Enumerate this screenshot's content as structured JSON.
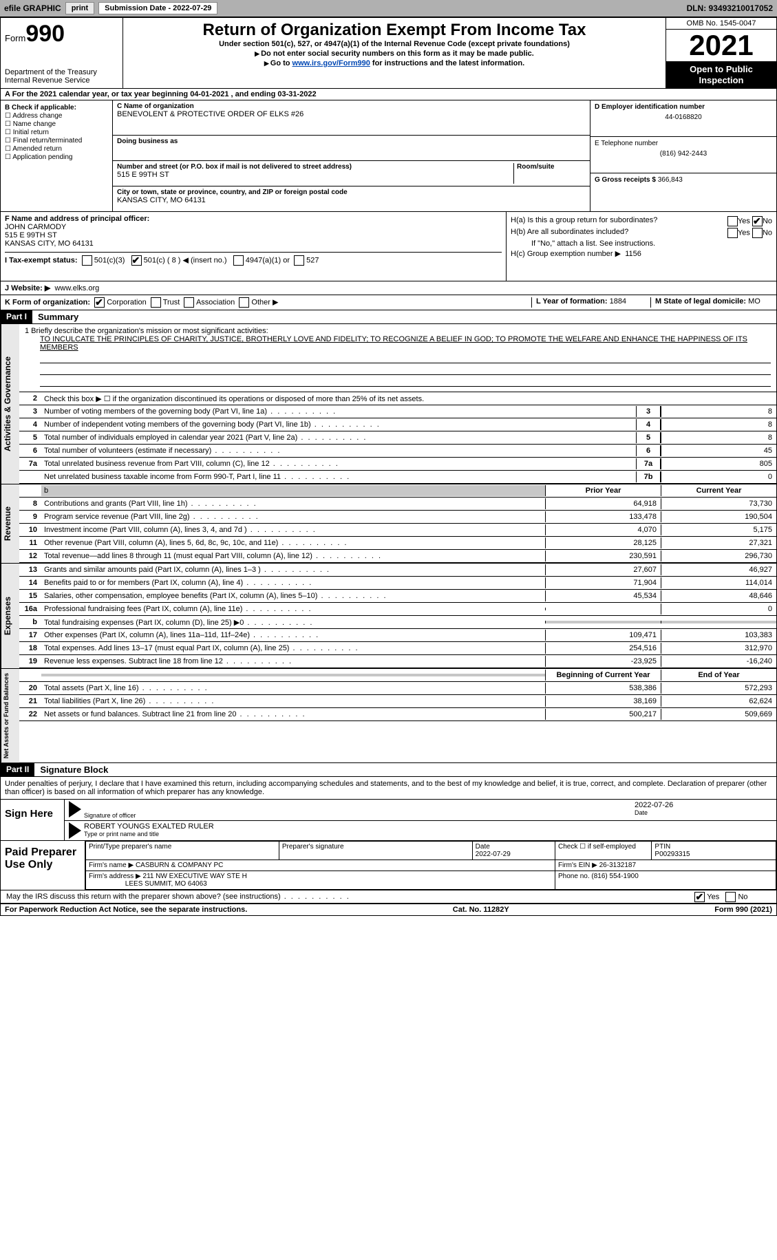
{
  "topbar": {
    "efile_label": "efile GRAPHIC",
    "print_btn": "print",
    "submission_label": "Submission Date - 2022-07-29",
    "dln_label": "DLN: 93493210017052"
  },
  "header": {
    "form_word": "Form",
    "form_num": "990",
    "dept": "Department of the Treasury",
    "irs": "Internal Revenue Service",
    "title": "Return of Organization Exempt From Income Tax",
    "sub1": "Under section 501(c), 527, or 4947(a)(1) of the Internal Revenue Code (except private foundations)",
    "sub2": "Do not enter social security numbers on this form as it may be made public.",
    "sub3_pre": "Go to ",
    "sub3_link": "www.irs.gov/Form990",
    "sub3_post": " for instructions and the latest information.",
    "omb": "OMB No. 1545-0047",
    "year": "2021",
    "inspect1": "Open to Public",
    "inspect2": "Inspection"
  },
  "row_a": "A For the 2021 calendar year, or tax year beginning 04-01-2021    , and ending 03-31-2022",
  "col_b": {
    "title": "B Check if applicable:",
    "items": [
      "Address change",
      "Name change",
      "Initial return",
      "Final return/terminated",
      "Amended return",
      "Application pending"
    ]
  },
  "col_c": {
    "name_label": "C Name of organization",
    "name_val": "BENEVOLENT & PROTECTIVE ORDER OF ELKS #26",
    "dba_label": "Doing business as",
    "street_label": "Number and street (or P.O. box if mail is not delivered to street address)",
    "room_label": "Room/suite",
    "street_val": "515 E 99TH ST",
    "city_label": "City or town, state or province, country, and ZIP or foreign postal code",
    "city_val": "KANSAS CITY, MO   64131"
  },
  "col_d": {
    "ein_label": "D Employer identification number",
    "ein_val": "44-0168820",
    "phone_label": "E Telephone number",
    "phone_val": "(816) 942-2443",
    "gross_label": "G Gross receipts $",
    "gross_val": "366,843"
  },
  "row_f": {
    "label": "F  Name and address of principal officer:",
    "name": "JOHN CARMODY",
    "street": "515 E 99TH ST",
    "city": "KANSAS CITY, MO   64131"
  },
  "row_h": {
    "ha": "H(a)  Is this a group return for subordinates?",
    "hb": "H(b)  Are all subordinates included?",
    "hb_note": "If \"No,\" attach a list. See instructions.",
    "hc": "H(c)  Group exemption number ▶",
    "hc_val": "1156",
    "yes": "Yes",
    "no": "No"
  },
  "row_i": {
    "label": "I    Tax-exempt status:",
    "opt1": "501(c)(3)",
    "opt2": "501(c) ( 8 ) ◀ (insert no.)",
    "opt3": "4947(a)(1) or",
    "opt4": "527"
  },
  "row_j": {
    "label": "J   Website: ▶",
    "val": "www.elks.org"
  },
  "row_k": {
    "label": "K Form of organization:",
    "opts": [
      "Corporation",
      "Trust",
      "Association",
      "Other ▶"
    ],
    "l_label": "L Year of formation:",
    "l_val": "1884",
    "m_label": "M State of legal domicile:",
    "m_val": "MO"
  },
  "part1": {
    "header": "Part I",
    "title": "Summary",
    "vert1": "Activities & Governance",
    "vert2": "Revenue",
    "vert3": "Expenses",
    "vert4": "Net Assets or Fund Balances",
    "line1_label": "1   Briefly describe the organization's mission or most significant activities:",
    "mission": "TO INCULCATE THE PRINCIPLES OF CHARITY, JUSTICE, BROTHERLY LOVE AND FIDELITY; TO RECOGNIZE A BELIEF IN GOD; TO PROMOTE THE WELFARE AND ENHANCE THE HAPPINESS OF ITS MEMBERS",
    "line2": "Check this box ▶ ☐  if the organization discontinued its operations or disposed of more than 25% of its net assets.",
    "rows_single": [
      {
        "n": "3",
        "desc": "Number of voting members of the governing body (Part VI, line 1a)",
        "ln": "3",
        "val": "8"
      },
      {
        "n": "4",
        "desc": "Number of independent voting members of the governing body (Part VI, line 1b)",
        "ln": "4",
        "val": "8"
      },
      {
        "n": "5",
        "desc": "Total number of individuals employed in calendar year 2021 (Part V, line 2a)",
        "ln": "5",
        "val": "8"
      },
      {
        "n": "6",
        "desc": "Total number of volunteers (estimate if necessary)",
        "ln": "6",
        "val": "45"
      },
      {
        "n": "7a",
        "desc": "Total unrelated business revenue from Part VIII, column (C), line 12",
        "ln": "7a",
        "val": "805"
      },
      {
        "n": "",
        "desc": "Net unrelated business taxable income from Form 990-T, Part I, line 11",
        "ln": "7b",
        "val": "0"
      }
    ],
    "prior_header": "Prior Year",
    "current_header": "Current Year",
    "rows_rev": [
      {
        "n": "8",
        "desc": "Contributions and grants (Part VIII, line 1h)",
        "p": "64,918",
        "c": "73,730"
      },
      {
        "n": "9",
        "desc": "Program service revenue (Part VIII, line 2g)",
        "p": "133,478",
        "c": "190,504"
      },
      {
        "n": "10",
        "desc": "Investment income (Part VIII, column (A), lines 3, 4, and 7d )",
        "p": "4,070",
        "c": "5,175"
      },
      {
        "n": "11",
        "desc": "Other revenue (Part VIII, column (A), lines 5, 6d, 8c, 9c, 10c, and 11e)",
        "p": "28,125",
        "c": "27,321"
      },
      {
        "n": "12",
        "desc": "Total revenue—add lines 8 through 11 (must equal Part VIII, column (A), line 12)",
        "p": "230,591",
        "c": "296,730"
      }
    ],
    "rows_exp": [
      {
        "n": "13",
        "desc": "Grants and similar amounts paid (Part IX, column (A), lines 1–3 )",
        "p": "27,607",
        "c": "46,927"
      },
      {
        "n": "14",
        "desc": "Benefits paid to or for members (Part IX, column (A), line 4)",
        "p": "71,904",
        "c": "114,014"
      },
      {
        "n": "15",
        "desc": "Salaries, other compensation, employee benefits (Part IX, column (A), lines 5–10)",
        "p": "45,534",
        "c": "48,646"
      },
      {
        "n": "16a",
        "desc": "Professional fundraising fees (Part IX, column (A), line 11e)",
        "p": "",
        "c": "0"
      },
      {
        "n": "b",
        "desc": "Total fundraising expenses (Part IX, column (D), line 25) ▶0",
        "p": "grey",
        "c": "grey"
      },
      {
        "n": "17",
        "desc": "Other expenses (Part IX, column (A), lines 11a–11d, 11f–24e)",
        "p": "109,471",
        "c": "103,383"
      },
      {
        "n": "18",
        "desc": "Total expenses. Add lines 13–17 (must equal Part IX, column (A), line 25)",
        "p": "254,516",
        "c": "312,970"
      },
      {
        "n": "19",
        "desc": "Revenue less expenses. Subtract line 18 from line 12",
        "p": "-23,925",
        "c": "-16,240"
      }
    ],
    "begin_header": "Beginning of Current Year",
    "end_header": "End of Year",
    "rows_net": [
      {
        "n": "20",
        "desc": "Total assets (Part X, line 16)",
        "p": "538,386",
        "c": "572,293"
      },
      {
        "n": "21",
        "desc": "Total liabilities (Part X, line 26)",
        "p": "38,169",
        "c": "62,624"
      },
      {
        "n": "22",
        "desc": "Net assets or fund balances. Subtract line 21 from line 20",
        "p": "500,217",
        "c": "509,669"
      }
    ]
  },
  "part2": {
    "header": "Part II",
    "title": "Signature Block",
    "decl": "Under penalties of perjury, I declare that I have examined this return, including accompanying schedules and statements, and to the best of my knowledge and belief, it is true, correct, and complete. Declaration of preparer (other than officer) is based on all information of which preparer has any knowledge.",
    "sign_here": "Sign Here",
    "sig_officer": "Signature of officer",
    "sig_date": "Date",
    "sig_date_val": "2022-07-26",
    "officer_name": "ROBERT YOUNGS  EXALTED RULER",
    "type_name": "Type or print name and title",
    "paid": "Paid Preparer Use Only",
    "print_prep": "Print/Type preparer's name",
    "prep_sig": "Preparer's signature",
    "date_label": "Date",
    "date_val": "2022-07-29",
    "check_self": "Check ☐ if self-employed",
    "ptin_label": "PTIN",
    "ptin_val": "P00293315",
    "firm_name_label": "Firm's name     ▶",
    "firm_name": "CASBURN & COMPANY PC",
    "firm_ein_label": "Firm's EIN ▶",
    "firm_ein": "26-3132187",
    "firm_addr_label": "Firm's address ▶",
    "firm_addr1": "211 NW EXECUTIVE WAY STE H",
    "firm_addr2": "LEES SUMMIT, MO   64063",
    "phone_label": "Phone no.",
    "phone_val": "(816) 554-1900",
    "discuss": "May the IRS discuss this return with the preparer shown above? (see instructions)",
    "yes": "Yes",
    "no": "No"
  },
  "footer": {
    "left": "For Paperwork Reduction Act Notice, see the separate instructions.",
    "mid": "Cat. No. 11282Y",
    "right": "Form 990 (2021)"
  }
}
